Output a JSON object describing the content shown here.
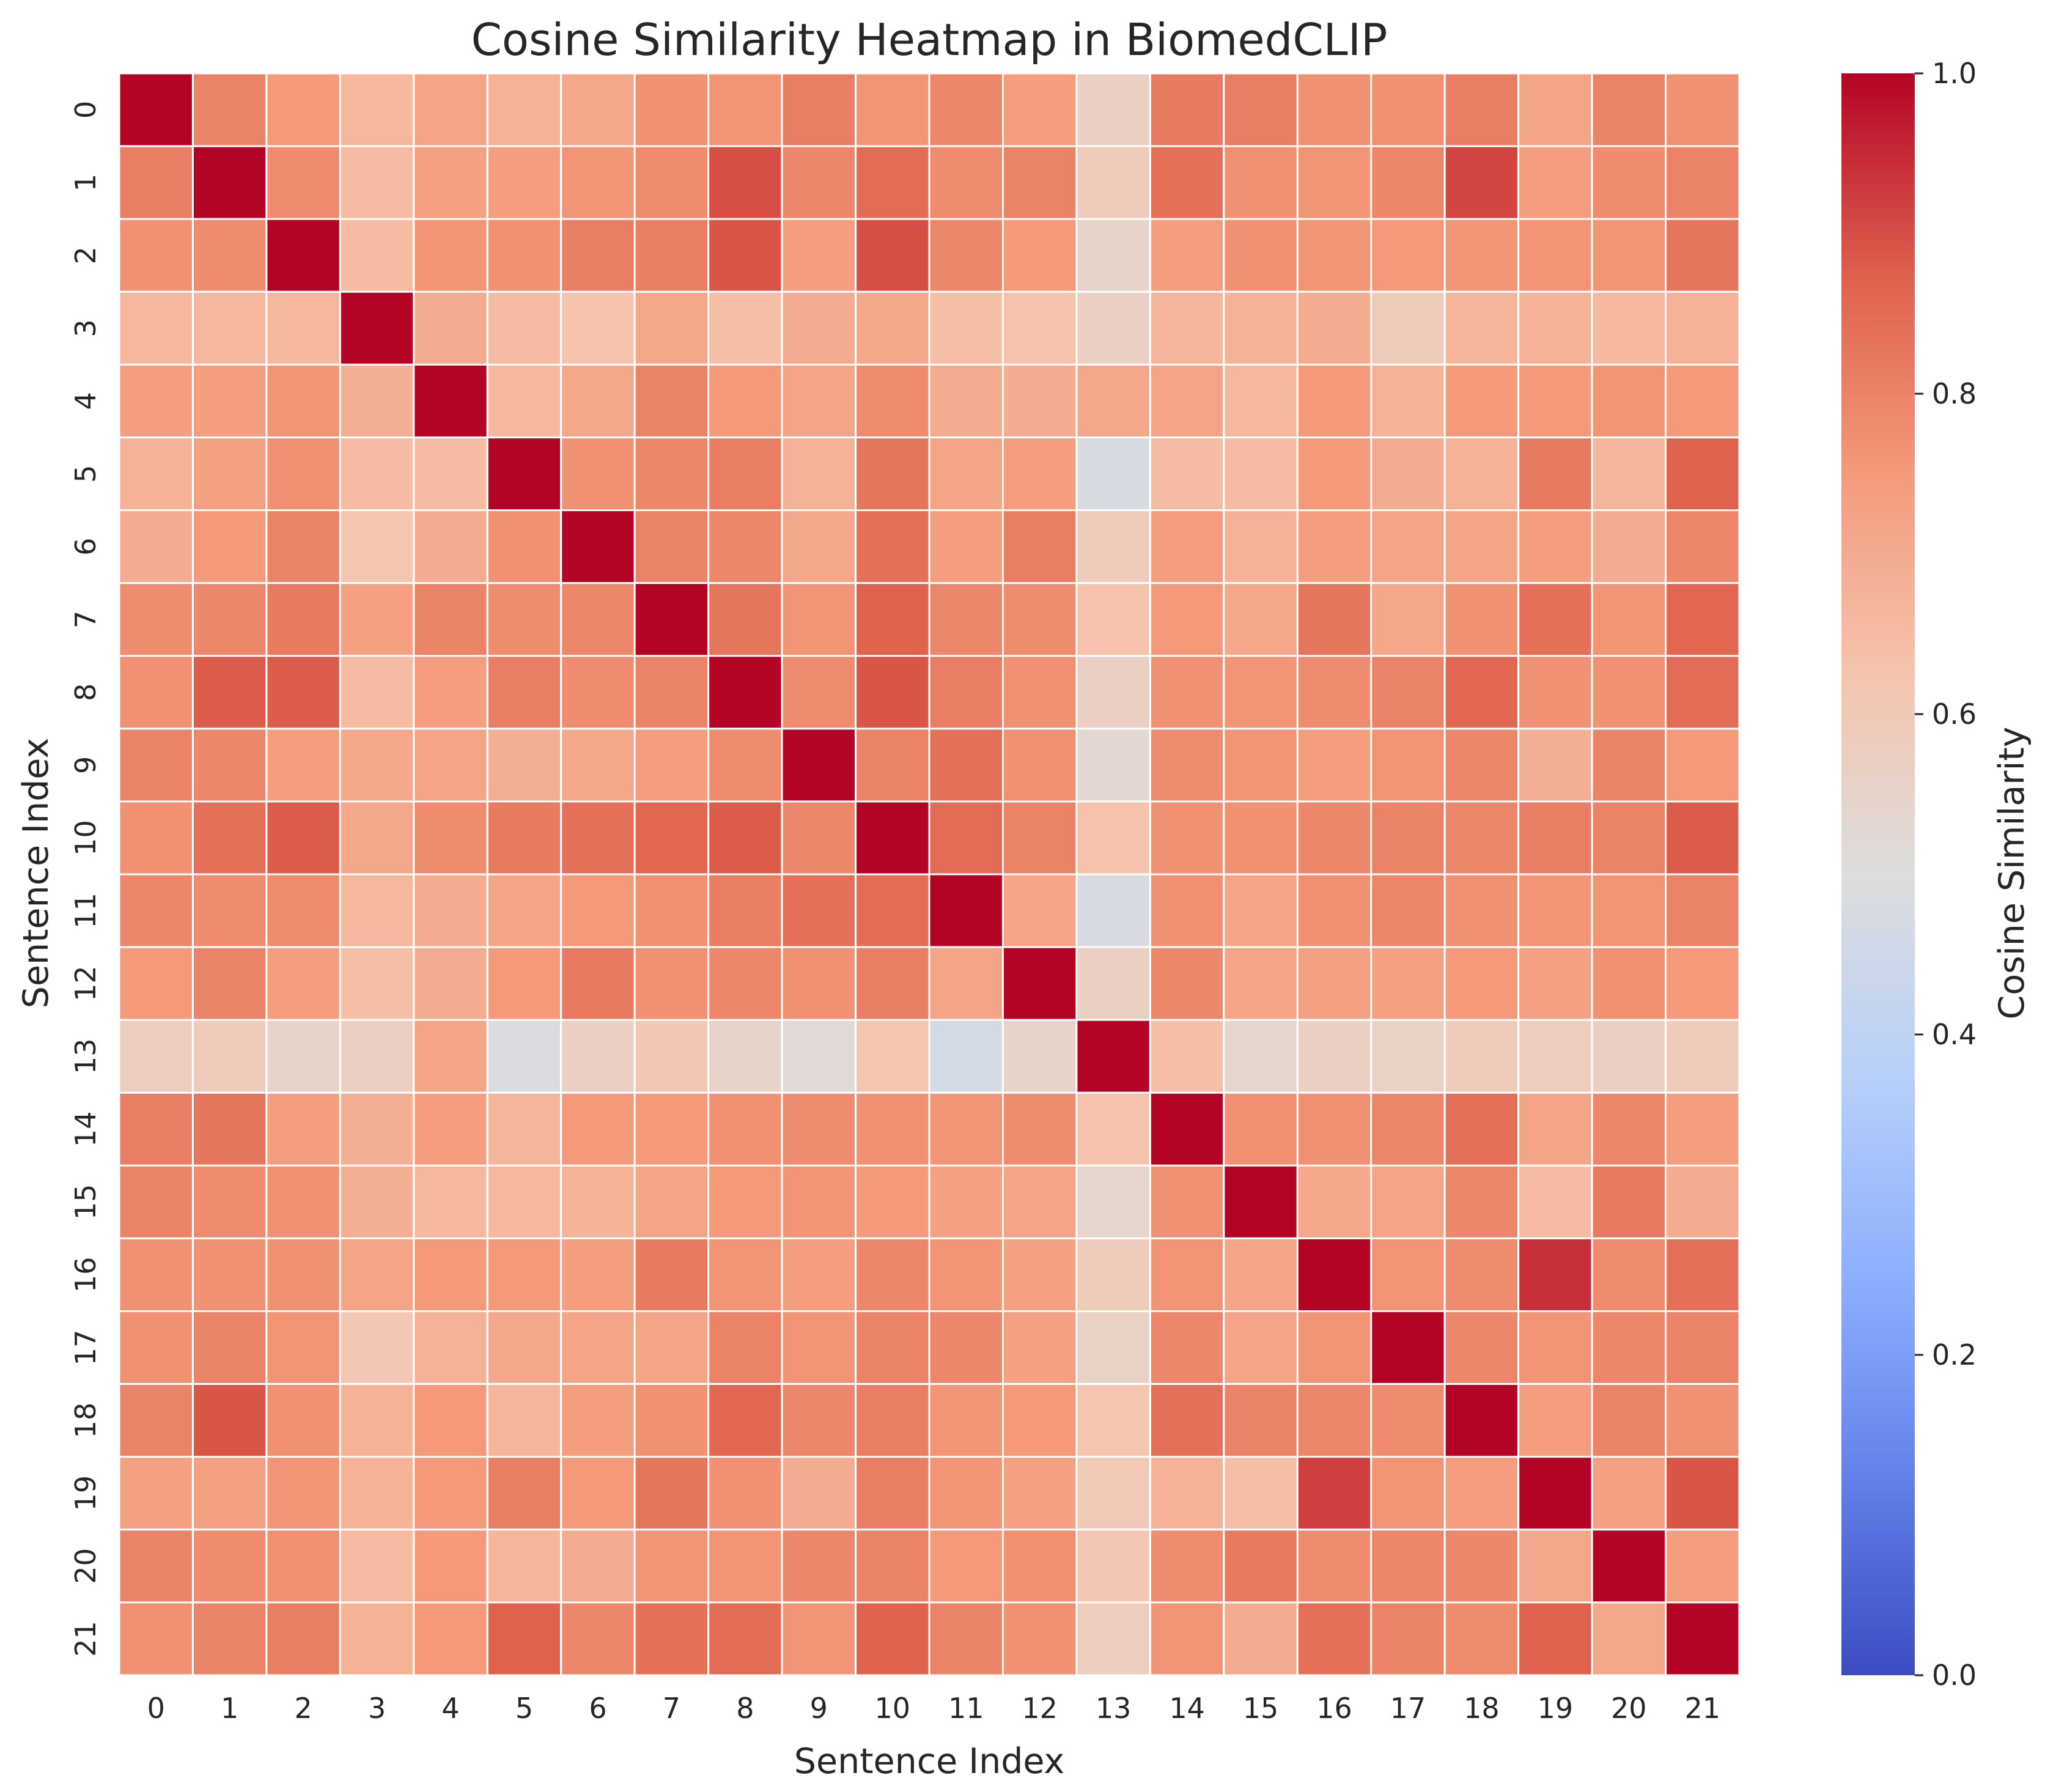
{
  "chart_data": {
    "type": "heatmap",
    "title": "Cosine Similarity Heatmap in BiomedCLIP",
    "xlabel": "Sentence Index",
    "ylabel": "Sentence Index",
    "x_categories": [
      "0",
      "1",
      "2",
      "3",
      "4",
      "5",
      "6",
      "7",
      "8",
      "9",
      "10",
      "11",
      "12",
      "13",
      "14",
      "15",
      "16",
      "17",
      "18",
      "19",
      "20",
      "21"
    ],
    "y_categories": [
      "0",
      "1",
      "2",
      "3",
      "4",
      "5",
      "6",
      "7",
      "8",
      "9",
      "10",
      "11",
      "12",
      "13",
      "14",
      "15",
      "16",
      "17",
      "18",
      "19",
      "20",
      "21"
    ],
    "values": [
      [
        1.0,
        0.8,
        0.75,
        0.66,
        0.72,
        0.68,
        0.71,
        0.77,
        0.76,
        0.81,
        0.76,
        0.79,
        0.74,
        0.57,
        0.82,
        0.81,
        0.77,
        0.77,
        0.81,
        0.72,
        0.8,
        0.77
      ],
      [
        0.81,
        1.0,
        0.78,
        0.65,
        0.73,
        0.74,
        0.76,
        0.78,
        0.9,
        0.79,
        0.85,
        0.78,
        0.8,
        0.59,
        0.84,
        0.77,
        0.76,
        0.79,
        0.91,
        0.74,
        0.78,
        0.8
      ],
      [
        0.77,
        0.78,
        1.0,
        0.65,
        0.76,
        0.77,
        0.81,
        0.81,
        0.89,
        0.74,
        0.9,
        0.79,
        0.75,
        0.55,
        0.74,
        0.77,
        0.76,
        0.75,
        0.76,
        0.76,
        0.76,
        0.83
      ],
      [
        0.66,
        0.66,
        0.66,
        1.0,
        0.7,
        0.65,
        0.63,
        0.71,
        0.64,
        0.7,
        0.71,
        0.64,
        0.63,
        0.57,
        0.67,
        0.68,
        0.7,
        0.59,
        0.67,
        0.68,
        0.66,
        0.68
      ],
      [
        0.74,
        0.74,
        0.76,
        0.69,
        1.0,
        0.66,
        0.71,
        0.8,
        0.75,
        0.72,
        0.78,
        0.7,
        0.7,
        0.71,
        0.72,
        0.66,
        0.75,
        0.68,
        0.75,
        0.75,
        0.76,
        0.75
      ],
      [
        0.68,
        0.73,
        0.77,
        0.65,
        0.65,
        1.0,
        0.77,
        0.79,
        0.81,
        0.68,
        0.83,
        0.72,
        0.74,
        0.48,
        0.65,
        0.65,
        0.75,
        0.7,
        0.68,
        0.82,
        0.67,
        0.87
      ],
      [
        0.7,
        0.75,
        0.8,
        0.62,
        0.7,
        0.77,
        1.0,
        0.8,
        0.79,
        0.71,
        0.84,
        0.74,
        0.81,
        0.59,
        0.74,
        0.68,
        0.74,
        0.72,
        0.72,
        0.74,
        0.7,
        0.79
      ],
      [
        0.78,
        0.79,
        0.82,
        0.73,
        0.8,
        0.78,
        0.79,
        1.0,
        0.83,
        0.76,
        0.87,
        0.79,
        0.78,
        0.63,
        0.75,
        0.71,
        0.83,
        0.71,
        0.77,
        0.84,
        0.76,
        0.86
      ],
      [
        0.77,
        0.88,
        0.88,
        0.65,
        0.74,
        0.81,
        0.78,
        0.8,
        1.0,
        0.78,
        0.89,
        0.81,
        0.77,
        0.57,
        0.77,
        0.76,
        0.78,
        0.8,
        0.86,
        0.77,
        0.77,
        0.85
      ],
      [
        0.8,
        0.79,
        0.74,
        0.71,
        0.72,
        0.69,
        0.71,
        0.74,
        0.78,
        1.0,
        0.8,
        0.84,
        0.77,
        0.53,
        0.78,
        0.76,
        0.74,
        0.76,
        0.79,
        0.69,
        0.8,
        0.75
      ],
      [
        0.77,
        0.84,
        0.88,
        0.71,
        0.78,
        0.82,
        0.84,
        0.86,
        0.88,
        0.79,
        1.0,
        0.85,
        0.8,
        0.63,
        0.77,
        0.77,
        0.79,
        0.8,
        0.79,
        0.81,
        0.8,
        0.88
      ],
      [
        0.79,
        0.78,
        0.78,
        0.66,
        0.7,
        0.72,
        0.75,
        0.77,
        0.81,
        0.84,
        0.85,
        1.0,
        0.72,
        0.48,
        0.77,
        0.72,
        0.77,
        0.79,
        0.77,
        0.76,
        0.76,
        0.8
      ],
      [
        0.75,
        0.8,
        0.74,
        0.64,
        0.7,
        0.75,
        0.82,
        0.77,
        0.79,
        0.77,
        0.81,
        0.72,
        1.0,
        0.57,
        0.79,
        0.72,
        0.73,
        0.73,
        0.75,
        0.73,
        0.77,
        0.75
      ],
      [
        0.58,
        0.59,
        0.55,
        0.57,
        0.72,
        0.49,
        0.57,
        0.61,
        0.55,
        0.52,
        0.62,
        0.47,
        0.55,
        1.0,
        0.64,
        0.54,
        0.57,
        0.56,
        0.59,
        0.58,
        0.57,
        0.59
      ],
      [
        0.81,
        0.83,
        0.74,
        0.69,
        0.74,
        0.67,
        0.75,
        0.75,
        0.77,
        0.78,
        0.77,
        0.76,
        0.78,
        0.63,
        1.0,
        0.77,
        0.77,
        0.79,
        0.84,
        0.72,
        0.79,
        0.74
      ],
      [
        0.8,
        0.78,
        0.77,
        0.69,
        0.66,
        0.66,
        0.68,
        0.72,
        0.75,
        0.76,
        0.75,
        0.73,
        0.72,
        0.54,
        0.77,
        1.0,
        0.71,
        0.72,
        0.79,
        0.65,
        0.82,
        0.7
      ],
      [
        0.77,
        0.77,
        0.77,
        0.72,
        0.75,
        0.75,
        0.74,
        0.82,
        0.76,
        0.74,
        0.79,
        0.76,
        0.73,
        0.59,
        0.76,
        0.72,
        1.0,
        0.76,
        0.78,
        0.94,
        0.78,
        0.84
      ],
      [
        0.77,
        0.8,
        0.76,
        0.61,
        0.68,
        0.71,
        0.72,
        0.72,
        0.8,
        0.76,
        0.8,
        0.79,
        0.73,
        0.56,
        0.79,
        0.72,
        0.76,
        1.0,
        0.79,
        0.76,
        0.79,
        0.8
      ],
      [
        0.8,
        0.89,
        0.77,
        0.68,
        0.75,
        0.67,
        0.74,
        0.77,
        0.86,
        0.79,
        0.81,
        0.76,
        0.75,
        0.62,
        0.84,
        0.8,
        0.79,
        0.78,
        1.0,
        0.74,
        0.8,
        0.77
      ],
      [
        0.73,
        0.73,
        0.76,
        0.68,
        0.75,
        0.81,
        0.75,
        0.83,
        0.77,
        0.7,
        0.81,
        0.76,
        0.73,
        0.6,
        0.68,
        0.64,
        0.92,
        0.76,
        0.74,
        1.0,
        0.73,
        0.89
      ],
      [
        0.8,
        0.78,
        0.77,
        0.65,
        0.75,
        0.67,
        0.7,
        0.76,
        0.76,
        0.79,
        0.8,
        0.75,
        0.77,
        0.61,
        0.78,
        0.82,
        0.78,
        0.79,
        0.79,
        0.71,
        1.0,
        0.74
      ],
      [
        0.77,
        0.8,
        0.81,
        0.68,
        0.75,
        0.87,
        0.79,
        0.84,
        0.85,
        0.76,
        0.87,
        0.8,
        0.77,
        0.58,
        0.76,
        0.7,
        0.84,
        0.8,
        0.78,
        0.87,
        0.71,
        1.0
      ]
    ],
    "vmin": 0.0,
    "vmax": 1.0,
    "colormap": "coolwarm",
    "grid": true,
    "grid_color": "#ffffff",
    "colorbar": {
      "label": "Cosine Similarity",
      "ticks": [
        0.0,
        0.2,
        0.4,
        0.6,
        0.8,
        1.0
      ],
      "tick_labels": [
        "0.0",
        "0.2",
        "0.4",
        "0.6",
        "0.8",
        "1.0"
      ],
      "position": "right"
    }
  }
}
